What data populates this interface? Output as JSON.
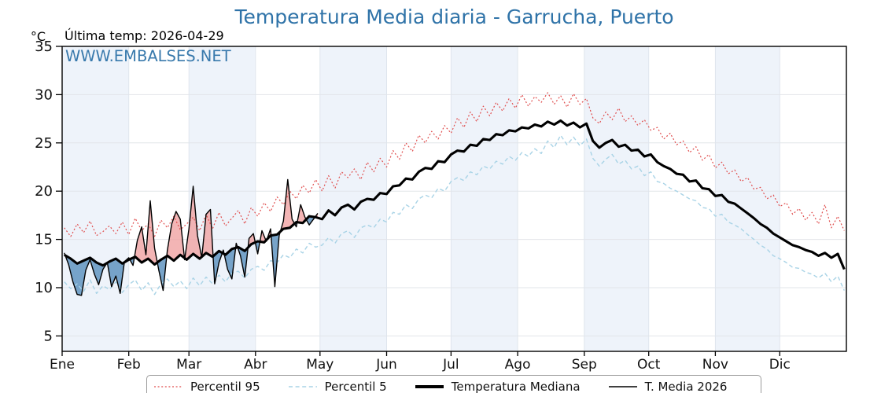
{
  "title": "Temperatura Media diaria - Garrucha, Puerto",
  "subtitle": "Última temp: 2026-04-29",
  "watermark": "WWW.EMBALSES.NET",
  "y_axis_unit": "°C",
  "chart_data": {
    "type": "line",
    "title": "Temperatura Media diaria - Garrucha, Puerto",
    "xlabel": "",
    "ylabel": "°C",
    "x_tick_labels": [
      "Ene",
      "Feb",
      "Mar",
      "Abr",
      "May",
      "Jun",
      "Jul",
      "Ago",
      "Sep",
      "Oct",
      "Nov",
      "Dic"
    ],
    "month_start_days": [
      0,
      31,
      59,
      90,
      120,
      151,
      181,
      212,
      243,
      273,
      304,
      334
    ],
    "days_in_year": 365,
    "yticks": [
      5,
      10,
      15,
      20,
      25,
      30,
      35
    ],
    "ylim": [
      3.4,
      35
    ],
    "grid": true,
    "legend_position": "bottom",
    "legend": [
      "Percentil 95",
      "Percentil 5",
      "Temperatura Mediana",
      "T. Media 2026"
    ],
    "shaded_months": "alternating, odd months shaded",
    "fills": {
      "above": "red shading where T. Media 2026 is above Temperatura Mediana (Jan 1 - Apr 29)",
      "below": "blue shading where T. Media 2026 is below Temperatura Mediana (Jan 1 - Apr 29)"
    },
    "colors": {
      "p95": "#e04f4f",
      "p5": "#a8d3e6",
      "median": "#000000",
      "t2026": "#000000",
      "fill_above": "#f0a3a3",
      "fill_below": "#6597c2",
      "band": "#eef3fa",
      "grid": "#e2e5e9",
      "vgrid": "#dfe5ed",
      "axis": "#000000",
      "title": "#2f73a8",
      "watermark": "#2f73a8"
    },
    "series": [
      {
        "id": "p95",
        "name": "Percentil 95",
        "style": "dotted",
        "x_start": 1,
        "x_step": 3,
        "values": [
          16.2,
          15.3,
          16.6,
          15.7,
          16.9,
          15.4,
          15.8,
          16.4,
          15.6,
          16.8,
          15.5,
          17.2,
          15.9,
          16.6,
          15.3,
          17.0,
          16.2,
          17.4,
          16.0,
          16.6,
          17.3,
          15.9,
          17.6,
          16.1,
          17.8,
          16.4,
          17.2,
          18.0,
          16.6,
          18.3,
          17.4,
          18.8,
          17.9,
          19.4,
          18.6,
          20.0,
          19.2,
          20.6,
          19.8,
          21.2,
          20.0,
          21.6,
          20.3,
          22.0,
          21.4,
          22.3,
          21.2,
          23.0,
          22.0,
          23.4,
          22.5,
          24.2,
          23.3,
          25.0,
          24.1,
          25.8,
          25.0,
          26.2,
          25.4,
          26.8,
          26.0,
          27.6,
          26.6,
          28.2,
          27.2,
          28.8,
          27.8,
          29.2,
          28.3,
          29.6,
          28.6,
          30.0,
          28.8,
          29.8,
          29.2,
          30.2,
          29.0,
          29.9,
          28.7,
          30.1,
          29.0,
          29.6,
          27.6,
          27.0,
          28.2,
          27.4,
          28.6,
          27.2,
          27.8,
          26.8,
          27.4,
          26.3,
          26.6,
          25.4,
          26.0,
          24.8,
          25.2,
          24.0,
          24.6,
          23.2,
          23.8,
          22.4,
          23.0,
          21.8,
          22.2,
          21.0,
          21.4,
          20.2,
          20.4,
          19.2,
          19.6,
          18.4,
          18.8,
          17.6,
          18.2,
          17.0,
          17.8,
          16.6,
          18.6,
          16.2,
          17.4,
          15.9
        ]
      },
      {
        "id": "p5",
        "name": "Percentil 5",
        "style": "dashed",
        "x_start": 1,
        "x_step": 3,
        "values": [
          10.6,
          9.9,
          10.4,
          9.6,
          10.8,
          9.4,
          10.2,
          9.8,
          10.6,
          9.5,
          10.3,
          10.8,
          9.7,
          10.5,
          9.3,
          10.4,
          10.9,
          10.1,
          10.7,
          9.9,
          11.0,
          10.2,
          11.1,
          10.4,
          11.3,
          10.6,
          11.5,
          11.7,
          11.0,
          11.9,
          12.2,
          11.8,
          12.8,
          12.6,
          13.4,
          13.1,
          14.0,
          13.6,
          14.6,
          14.2,
          14.4,
          15.2,
          14.6,
          15.6,
          15.9,
          15.2,
          16.2,
          16.5,
          16.2,
          17.1,
          16.8,
          17.8,
          17.6,
          18.6,
          18.2,
          19.2,
          19.6,
          19.3,
          20.3,
          20.0,
          21.0,
          21.4,
          21.1,
          22.0,
          21.7,
          22.6,
          22.3,
          23.1,
          22.8,
          23.6,
          23.2,
          24.0,
          23.6,
          24.4,
          23.9,
          25.2,
          24.5,
          25.8,
          24.8,
          25.6,
          24.7,
          25.4,
          23.4,
          22.6,
          23.3,
          23.8,
          22.8,
          23.2,
          22.3,
          22.6,
          21.6,
          22.0,
          21.0,
          20.8,
          20.3,
          20.0,
          19.6,
          19.2,
          19.0,
          18.3,
          18.2,
          17.4,
          17.6,
          16.8,
          16.5,
          16.1,
          15.5,
          15.0,
          14.4,
          14.0,
          13.3,
          13.0,
          12.6,
          12.1,
          12.0,
          11.6,
          11.4,
          11.0,
          11.5,
          10.6,
          11.2,
          9.7
        ]
      },
      {
        "id": "mediana",
        "name": "Temperatura Mediana",
        "style": "solid-thick",
        "x_start": 1,
        "x_step": 3,
        "values": [
          13.4,
          13.0,
          12.5,
          12.8,
          13.1,
          12.6,
          12.3,
          12.7,
          13.0,
          12.5,
          12.9,
          13.2,
          12.6,
          13.0,
          12.4,
          12.9,
          13.3,
          12.8,
          13.4,
          12.9,
          13.5,
          13.0,
          13.6,
          13.2,
          13.8,
          13.4,
          14.0,
          14.2,
          13.8,
          14.5,
          14.8,
          14.7,
          15.4,
          15.5,
          16.1,
          16.2,
          16.8,
          16.7,
          17.4,
          17.3,
          17.1,
          18.0,
          17.5,
          18.3,
          18.6,
          18.1,
          18.9,
          19.2,
          19.1,
          19.8,
          19.7,
          20.5,
          20.6,
          21.3,
          21.2,
          22.0,
          22.4,
          22.3,
          23.1,
          23.0,
          23.8,
          24.2,
          24.1,
          24.8,
          24.7,
          25.4,
          25.3,
          25.9,
          25.8,
          26.3,
          26.2,
          26.6,
          26.5,
          26.9,
          26.7,
          27.2,
          26.9,
          27.3,
          26.8,
          27.1,
          26.6,
          27.0,
          25.2,
          24.5,
          25.0,
          25.3,
          24.6,
          24.8,
          24.2,
          24.3,
          23.6,
          23.8,
          23.0,
          22.6,
          22.3,
          21.8,
          21.7,
          21.0,
          21.1,
          20.3,
          20.2,
          19.5,
          19.6,
          18.9,
          18.7,
          18.2,
          17.7,
          17.2,
          16.6,
          16.2,
          15.6,
          15.2,
          14.8,
          14.4,
          14.2,
          13.9,
          13.7,
          13.3,
          13.6,
          13.1,
          13.5,
          11.9
        ]
      },
      {
        "id": "t2026",
        "name": "T. Media 2026",
        "style": "solid-thin",
        "last_date": "2026-04-29",
        "x_start": 1,
        "x_step": 2,
        "values": [
          13.6,
          12.4,
          10.6,
          9.3,
          9.2,
          11.8,
          12.9,
          11.4,
          10.3,
          11.9,
          12.6,
          10.1,
          11.2,
          9.4,
          12.7,
          13.1,
          12.3,
          14.9,
          16.3,
          13.4,
          19.0,
          14.1,
          11.8,
          9.7,
          13.9,
          16.6,
          17.9,
          17.1,
          12.9,
          16.1,
          20.5,
          15.4,
          13.1,
          17.6,
          18.1,
          10.4,
          12.6,
          13.9,
          11.9,
          10.9,
          14.6,
          13.3,
          11.1,
          15.1,
          15.6,
          13.5,
          15.9,
          14.8,
          16.1,
          10.1,
          15.4,
          16.9,
          21.2,
          17.1,
          16.3,
          18.6,
          17.3,
          16.5,
          17.1,
          17.7
        ]
      }
    ]
  }
}
